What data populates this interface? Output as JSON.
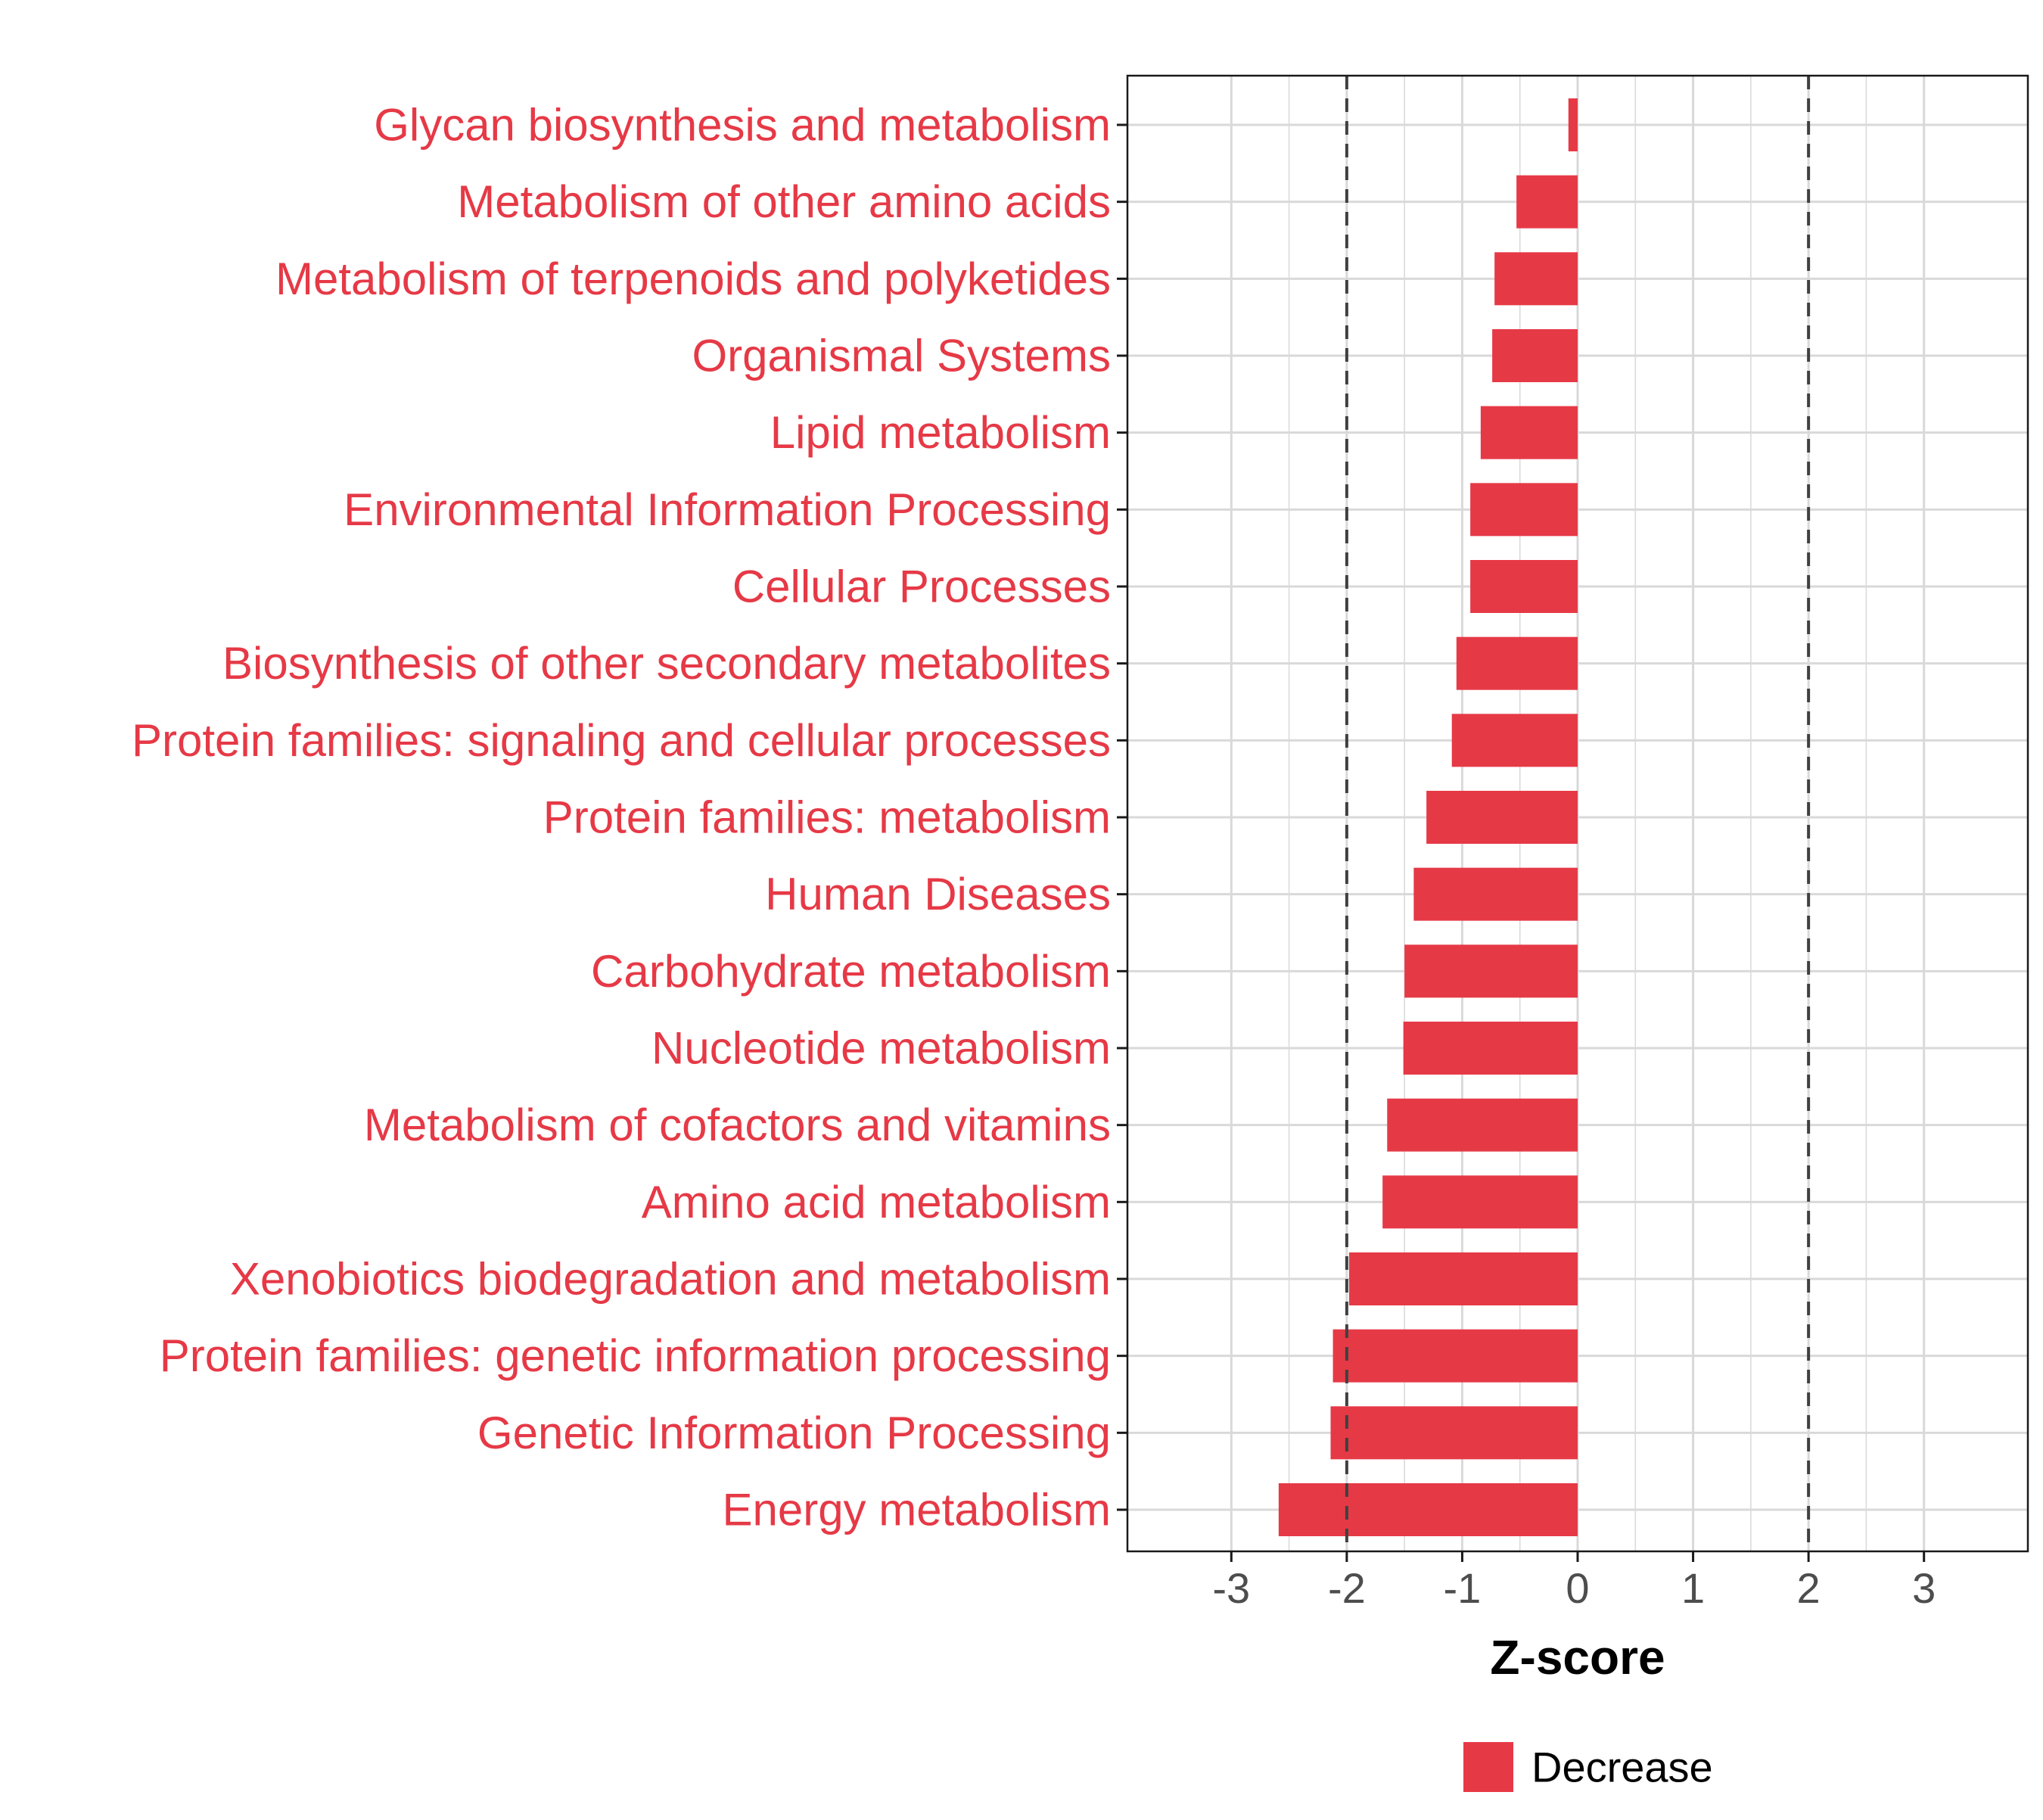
{
  "chart_data": {
    "type": "bar",
    "orientation": "horizontal",
    "title": "",
    "xlabel": "Z-score",
    "ylabel": "",
    "xlim": [
      -3.9,
      3.9
    ],
    "xticks": [
      -3,
      -2,
      -1,
      0,
      1,
      2,
      3
    ],
    "xtick_labels": [
      "-3",
      "-2",
      "-1",
      "0",
      "1",
      "2",
      "3"
    ],
    "reference_lines": [
      -2,
      2
    ],
    "grid": true,
    "categories": [
      "Glycan biosynthesis and metabolism",
      "Metabolism of other amino acids",
      "Metabolism of terpenoids and polyketides",
      "Organismal Systems",
      "Lipid metabolism",
      "Environmental Information Processing",
      "Cellular Processes",
      "Biosynthesis of other secondary metabolites",
      "Protein families: signaling and cellular processes",
      "Protein families: metabolism",
      "Human Diseases",
      "Carbohydrate metabolism",
      "Nucleotide metabolism",
      "Metabolism of cofactors and vitamins",
      "Amino acid metabolism",
      "Xenobiotics biodegradation and metabolism",
      "Protein families: genetic information processing",
      "Genetic Information Processing",
      "Energy metabolism"
    ],
    "values": [
      -0.08,
      -0.53,
      -0.72,
      -0.74,
      -0.84,
      -0.93,
      -0.93,
      -1.05,
      -1.09,
      -1.31,
      -1.42,
      -1.5,
      -1.51,
      -1.65,
      -1.69,
      -1.98,
      -2.12,
      -2.14,
      -2.59
    ],
    "series": [
      {
        "name": "Decrease",
        "color": "#E63946"
      }
    ],
    "legend": {
      "position": "bottom",
      "entries": [
        "Decrease"
      ]
    }
  },
  "colors": {
    "bar": "#E63946",
    "label": "#E63946",
    "grid": "#D9D9D9",
    "axis": "#1a1a1a",
    "tick_label": "#4D4D4D",
    "ref_line": "#404040"
  }
}
